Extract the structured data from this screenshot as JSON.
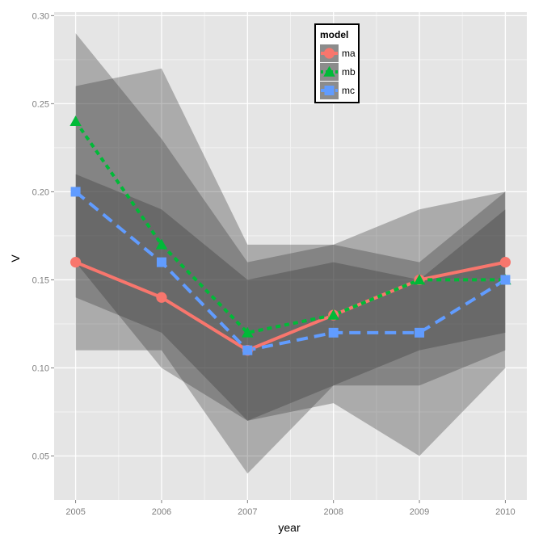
{
  "chart_data": {
    "type": "line",
    "xlabel": "year",
    "ylabel": "V",
    "x": [
      2005,
      2006,
      2007,
      2008,
      2009,
      2010
    ],
    "x_tick_labels": [
      "2005",
      "2006",
      "2007",
      "2008",
      "2009",
      "2010"
    ],
    "xlim": [
      2004.75,
      2010.25
    ],
    "ylim": [
      0.025,
      0.302
    ],
    "y_ticks": [
      0.05,
      0.1,
      0.15,
      0.2,
      0.25,
      0.3
    ],
    "y_tick_labels": [
      "0.05",
      "0.10",
      "0.15",
      "0.20",
      "0.25",
      "0.30"
    ],
    "grid": true,
    "legend": {
      "title": "model",
      "placement": "top-center"
    },
    "series": [
      {
        "name": "ma",
        "color": "#F8766D",
        "marker": "circle",
        "line": "solid",
        "values": [
          0.16,
          0.14,
          0.11,
          0.13,
          0.15,
          0.16
        ],
        "lower": [
          0.14,
          0.12,
          0.07,
          0.09,
          0.11,
          0.12
        ],
        "upper": [
          0.21,
          0.19,
          0.15,
          0.16,
          0.15,
          0.19
        ]
      },
      {
        "name": "mb",
        "color": "#00BA38",
        "marker": "triangle",
        "line": "dotted",
        "values": [
          0.24,
          0.17,
          0.12,
          0.13,
          0.15,
          0.15
        ],
        "lower": [
          0.16,
          0.1,
          0.07,
          0.08,
          0.05,
          0.1
        ],
        "upper": [
          0.29,
          0.23,
          0.16,
          0.17,
          0.19,
          0.2
        ]
      },
      {
        "name": "mc",
        "color": "#619CFF",
        "marker": "square",
        "line": "dashed",
        "values": [
          0.2,
          0.16,
          0.11,
          0.12,
          0.12,
          0.15
        ],
        "lower": [
          0.11,
          0.11,
          0.04,
          0.09,
          0.09,
          0.11
        ],
        "upper": [
          0.26,
          0.27,
          0.17,
          0.17,
          0.16,
          0.2
        ]
      }
    ],
    "colors": {
      "panel": "#E5E5E5",
      "grid_major": "#FFFFFF",
      "grid_minor": "#F2F2F2",
      "ribbon": "#333333"
    }
  }
}
